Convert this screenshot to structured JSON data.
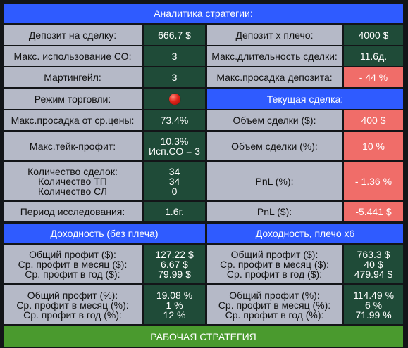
{
  "header": {
    "title": "Аналитика стратегии:"
  },
  "rows": {
    "deposit": {
      "label": "Депозит на сделку:",
      "value": "666.7 $"
    },
    "deposit_leverage": {
      "label": "Депозит х плечо:",
      "value": "4000 $"
    },
    "max_co_use": {
      "label": "Макс. использование СО:",
      "value": "3"
    },
    "max_duration": {
      "label": "Макс.длительность сделки:",
      "value": "11.6д."
    },
    "martingale": {
      "label": "Мартингейл:",
      "value": "3"
    },
    "max_dd_deposit": {
      "label": "Макс.просадка депозита:",
      "value": "- 44 %"
    },
    "trade_mode": {
      "label": "Режим торговли:",
      "indicator": "red-dot-icon"
    },
    "current_deal": {
      "title": "Текущая сделка:"
    },
    "max_dd_avg": {
      "label": "Макс.просадка от ср.цены:",
      "value": "73.4%"
    },
    "deal_volume_usd": {
      "label": "Объем сделки ($):",
      "value": "400 $"
    },
    "max_tp": {
      "label": "Макс.тейк-профит:",
      "value_lines": [
        "10.3%",
        "Исп.СО = 3"
      ]
    },
    "deal_volume_pct": {
      "label": "Объем сделки (%):",
      "value": "10 %"
    },
    "counts": {
      "labels": [
        "Количество сделок:",
        "Количество ТП",
        "Количество СЛ"
      ],
      "values": [
        "34",
        "34",
        "0"
      ]
    },
    "pnl_pct": {
      "label": "PnL (%):",
      "value": "- 1.36 %"
    },
    "period": {
      "label": "Период исследования:",
      "value": "1.6г."
    },
    "pnl_usd": {
      "label": "PnL ($):",
      "value": "-5.441 $"
    }
  },
  "returns": {
    "no_leverage_title": "Доходность (без плеча)",
    "leverage_title": "Доходность, плечо x6",
    "usd_labels": [
      "Общий профит ($):",
      "Ср. профит в месяц ($):",
      "Ср. профит в год ($):"
    ],
    "usd_no_leverage": [
      "127.22 $",
      "6.67 $",
      "79.99 $"
    ],
    "usd_leverage": [
      "763.3 $",
      "40 $",
      "479.94 $"
    ],
    "pct_labels": [
      "Общий профит (%):",
      "Ср. профит в месяц (%):",
      "Ср. профит в год (%):"
    ],
    "pct_no_leverage": [
      "19.08 %",
      "1 %",
      "12 %"
    ],
    "pct_leverage": [
      "114.49 %",
      "6 %",
      "71.99 %"
    ]
  },
  "footer": {
    "label": "РАБОЧАЯ СТРАТЕГИЯ"
  },
  "colors": {
    "header_blue": "#2f5bff",
    "label_gray": "#b5b9c7",
    "value_green": "#1f4b38",
    "value_red": "#f06d69",
    "footer_green": "#4a9a2e"
  }
}
